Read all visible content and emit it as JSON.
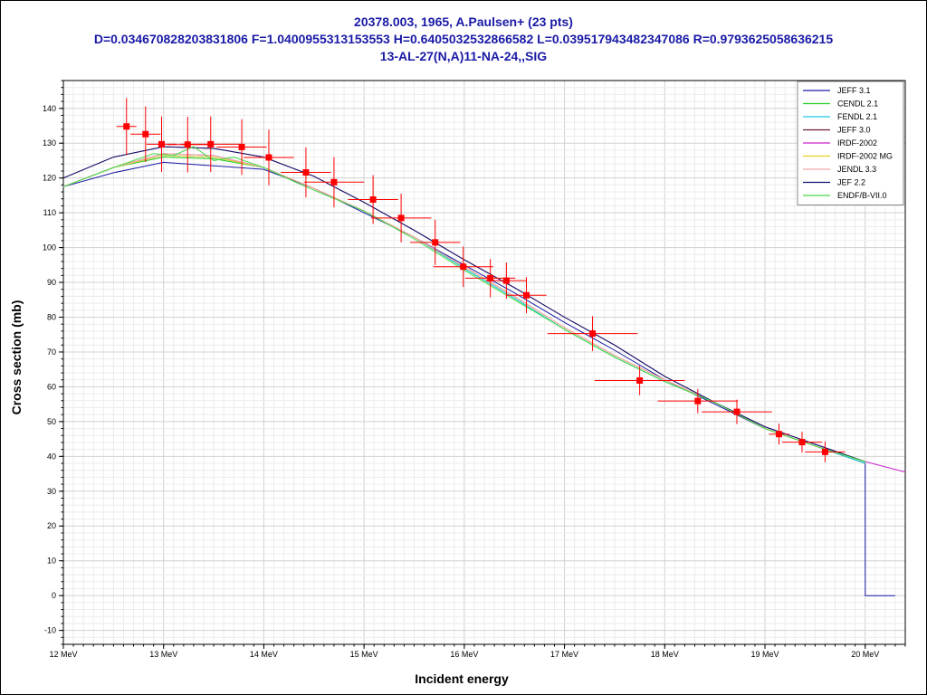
{
  "title": {
    "line1": "20378.003, 1965, A.Paulsen+ (23 pts)",
    "line2": "D=0.034670828203831806 F=1.0400955313153553 H=0.6405032532866582 L=0.039517943482347086 R=0.9793625058636215",
    "line3": "13-AL-27(N,A)11-NA-24,,SIG"
  },
  "chart_data": {
    "type": "scatter",
    "xlabel": "Incident energy",
    "ylabel": "Cross section (mb)",
    "xlim": [
      12,
      20.4
    ],
    "ylim": [
      -14,
      148
    ],
    "x_ticks": [
      12,
      13,
      14,
      15,
      16,
      17,
      18,
      19,
      20
    ],
    "x_tick_labels": [
      "12 MeV",
      "13 MeV",
      "14 MeV",
      "15 MeV",
      "16 MeV",
      "17 MeV",
      "18 MeV",
      "19 MeV",
      "20 MeV"
    ],
    "y_ticks": [
      -10,
      0,
      10,
      20,
      30,
      40,
      50,
      60,
      70,
      80,
      90,
      100,
      110,
      120,
      130,
      140
    ],
    "grid": true,
    "legend_position": "top-right",
    "series": [
      {
        "name": "JEFF 3.1",
        "color": "#1a1aa6",
        "x": [
          12,
          12.5,
          13,
          13.5,
          14,
          14.5,
          15,
          15.5,
          16,
          16.5,
          17,
          17.5,
          18,
          18.5,
          19,
          19.5,
          20,
          20.001,
          20.3
        ],
        "y": [
          117.5,
          121.5,
          124.5,
          123.5,
          122.5,
          117,
          110,
          103,
          95,
          87,
          78.5,
          70.5,
          62,
          55,
          48,
          43,
          38,
          0,
          0
        ]
      },
      {
        "name": "CENDL 2.1",
        "color": "#22cc22",
        "x": [
          12,
          12.5,
          13,
          13.5,
          14,
          14.5,
          15,
          15.5,
          16,
          16.5,
          17,
          17.5,
          18,
          18.5,
          19,
          19.5,
          20
        ],
        "y": [
          117.5,
          123,
          126,
          125.5,
          123,
          117,
          110.5,
          103,
          94,
          85.5,
          76.5,
          68.5,
          61.5,
          55.5,
          48,
          43,
          38
        ]
      },
      {
        "name": "FENDL 2.1",
        "color": "#22c8e8",
        "x": [
          12,
          12.5,
          13,
          13.5,
          14,
          14.5,
          15,
          15.5,
          16,
          16.5,
          17,
          17.5,
          18,
          18.5,
          19,
          19.5,
          20
        ],
        "y": [
          117.5,
          123,
          126.5,
          126,
          123,
          117,
          110.5,
          103,
          94,
          85.5,
          76.5,
          68.5,
          61.5,
          55.5,
          48,
          43,
          38
        ]
      },
      {
        "name": "JEFF 3.0",
        "color": "#6a1a3a",
        "x": [
          12,
          12.5,
          13,
          13.5,
          14,
          14.5,
          15,
          15.5,
          16,
          16.5,
          17,
          17.5,
          18,
          18.5,
          19,
          19.5,
          20
        ],
        "y": [
          120,
          126,
          129,
          128.5,
          126,
          120.5,
          113,
          105,
          96.5,
          88.5,
          80,
          72,
          63,
          55.5,
          48.5,
          43.5,
          38.5
        ]
      },
      {
        "name": "IRDF-2002",
        "color": "#cc22cc",
        "x": [
          12,
          12.5,
          13,
          13.5,
          14,
          14.5,
          15,
          15.5,
          16,
          16.5,
          17,
          17.5,
          18,
          18.5,
          19,
          19.5,
          20,
          20.4
        ],
        "y": [
          117.5,
          123,
          127,
          126.5,
          123,
          117,
          110.5,
          103,
          94.5,
          86,
          77,
          69,
          62,
          55.5,
          48,
          43,
          38.5,
          35.5
        ]
      },
      {
        "name": "IRDF-2002 MG",
        "color": "#e8d020",
        "x": [
          12,
          12.5,
          13,
          13.5,
          14,
          14.5,
          15,
          15.5,
          16,
          16.5,
          17,
          17.5,
          18,
          18.5,
          19,
          19.5,
          20
        ],
        "y": [
          117.5,
          123,
          126.5,
          126,
          123,
          117,
          110.5,
          103,
          94.5,
          86,
          77,
          69,
          62,
          55.5,
          48,
          43,
          38.5
        ]
      },
      {
        "name": "JENDL 3.3",
        "color": "#f0a8a8",
        "x": [
          12,
          12.5,
          13,
          13.5,
          14,
          14.5,
          15,
          15.5,
          16,
          16.5,
          17,
          17.5,
          18,
          18.5,
          19,
          19.5,
          20
        ],
        "y": [
          117.5,
          123,
          127,
          126.5,
          123,
          117,
          110.5,
          103,
          94.5,
          86,
          77,
          69,
          62,
          55.5,
          48,
          43,
          38.5
        ]
      },
      {
        "name": "JEF 2.2",
        "color": "#101070",
        "x": [
          12,
          12.5,
          13,
          13.5,
          14,
          14.5,
          15,
          15.5,
          16,
          16.5,
          17,
          17.5,
          18,
          18.5,
          19,
          19.5,
          20
        ],
        "y": [
          120,
          126,
          129,
          128.5,
          126,
          120.5,
          113,
          105,
          96.5,
          88.5,
          80,
          72,
          63,
          55.5,
          48.5,
          43.5,
          38.5
        ]
      },
      {
        "name": "ENDF/B-VII.0",
        "color": "#44dd44",
        "x": [
          12,
          12.5,
          12.9,
          13.1,
          13.3,
          13.5,
          13.7,
          14,
          14.3,
          14.5,
          15,
          15.5,
          16,
          16.5,
          17,
          17.5,
          18,
          18.5,
          19,
          19.5,
          20
        ],
        "y": [
          117.5,
          123,
          127,
          126.5,
          129,
          125,
          126,
          123,
          119,
          116.5,
          110.5,
          102.5,
          93.5,
          85,
          76.5,
          68.5,
          61.5,
          55.5,
          48,
          43,
          38.5
        ]
      }
    ],
    "experimental": {
      "color": "#ff0000",
      "points": [
        {
          "x": 12.63,
          "y": 134.8,
          "xerr": 0.1,
          "yerr": 8.2
        },
        {
          "x": 12.82,
          "y": 132.6,
          "xerr": 0.15,
          "yerr": 8.0
        },
        {
          "x": 12.98,
          "y": 129.7,
          "xerr": 0.15,
          "yerr": 8.0
        },
        {
          "x": 13.24,
          "y": 129.6,
          "xerr": 0.2,
          "yerr": 8.0
        },
        {
          "x": 13.47,
          "y": 129.7,
          "xerr": 0.3,
          "yerr": 8.0
        },
        {
          "x": 13.78,
          "y": 128.9,
          "xerr": 0.25,
          "yerr": 8.0
        },
        {
          "x": 14.05,
          "y": 125.9,
          "xerr": 0.25,
          "yerr": 8.0
        },
        {
          "x": 14.42,
          "y": 121.6,
          "xerr": 0.25,
          "yerr": 7.2
        },
        {
          "x": 14.7,
          "y": 118.8,
          "xerr": 0.3,
          "yerr": 7.2
        },
        {
          "x": 15.09,
          "y": 113.8,
          "xerr": 0.25,
          "yerr": 7.0
        },
        {
          "x": 15.37,
          "y": 108.5,
          "xerr": 0.3,
          "yerr": 7.0
        },
        {
          "x": 15.71,
          "y": 101.5,
          "xerr": 0.25,
          "yerr": 6.5
        },
        {
          "x": 15.99,
          "y": 94.5,
          "xerr": 0.3,
          "yerr": 5.8
        },
        {
          "x": 16.26,
          "y": 91.2,
          "xerr": 0.25,
          "yerr": 5.5
        },
        {
          "x": 16.42,
          "y": 90.5,
          "xerr": 0.2,
          "yerr": 5.2
        },
        {
          "x": 16.62,
          "y": 86.3,
          "xerr": 0.2,
          "yerr": 5.2
        },
        {
          "x": 17.28,
          "y": 75.3,
          "xerr": 0.45,
          "yerr": 5.0
        },
        {
          "x": 17.75,
          "y": 61.8,
          "xerr": 0.45,
          "yerr": 4.2
        },
        {
          "x": 18.33,
          "y": 55.9,
          "xerr": 0.4,
          "yerr": 3.5
        },
        {
          "x": 18.72,
          "y": 52.8,
          "xerr": 0.35,
          "yerr": 3.5
        },
        {
          "x": 19.14,
          "y": 46.4,
          "xerr": 0.1,
          "yerr": 3.0
        },
        {
          "x": 19.37,
          "y": 44.1,
          "xerr": 0.2,
          "yerr": 3.0
        },
        {
          "x": 19.6,
          "y": 41.3,
          "xerr": 0.2,
          "yerr": 3.0
        }
      ]
    }
  }
}
